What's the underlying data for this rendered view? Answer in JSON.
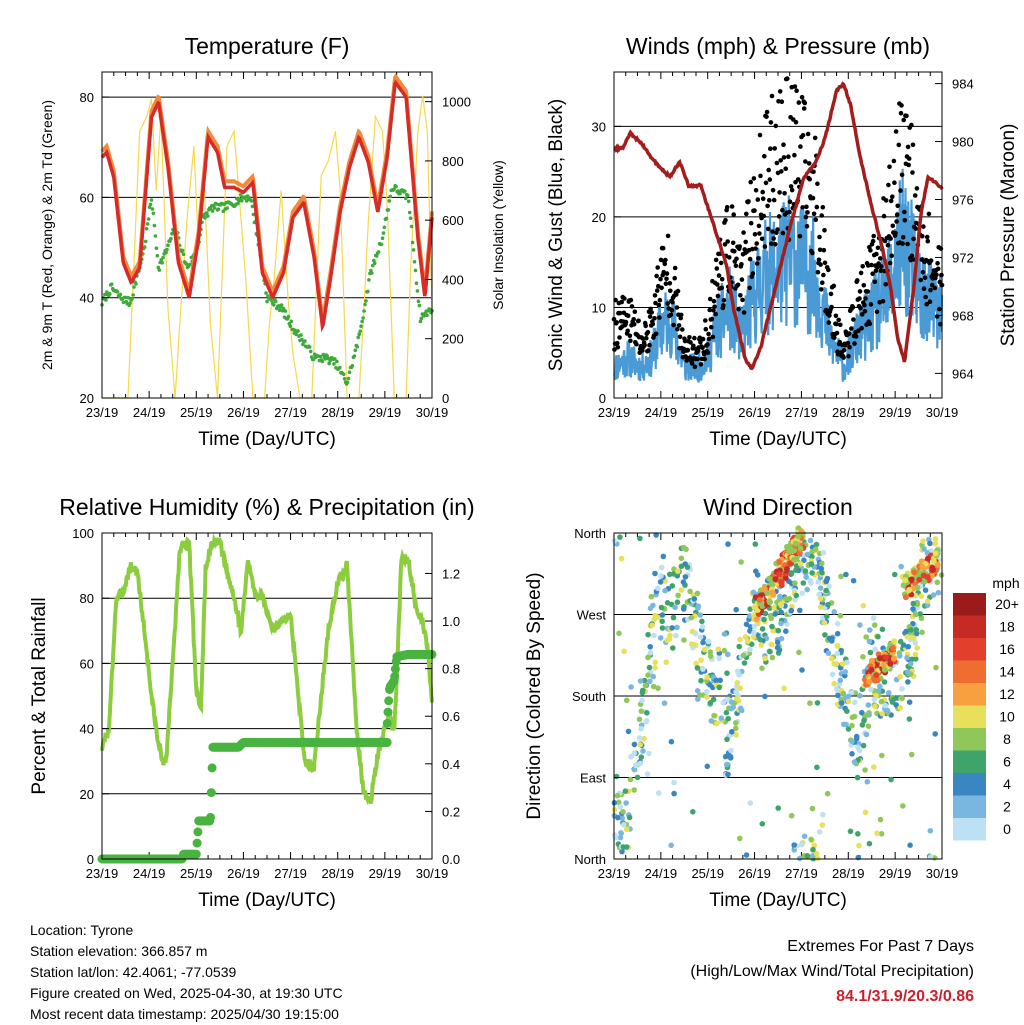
{
  "x_ticks": [
    "23/19",
    "24/19",
    "25/19",
    "26/19",
    "27/19",
    "28/19",
    "29/19",
    "30/19"
  ],
  "info": {
    "location": "Location: Tyrone",
    "elevation": "Station elevation: 366.857 m",
    "latlon": "Station lat/lon: 42.4061; -77.0539",
    "created": "Figure created on Wed, 2025-04-30, at 19:30 UTC",
    "recent": "Most recent data timestamp: 2025/04/30 19:15:00"
  },
  "extremes": {
    "title": "Extremes For Past 7 Days",
    "subtitle": "(High/Low/Max Wind/Total Precipitation)",
    "values": "84.1/31.9/20.3/0.86"
  },
  "chart_data": [
    {
      "type": "line",
      "title": "Temperature (F)",
      "xlabel": "Time (Day/UTC)",
      "ylabel": "2m & 9m T (Red, Orange) & 2m Td (Green)",
      "ylabel_right": "Solar Insolation (Yellow)",
      "ylim": [
        20,
        85
      ],
      "yticks": [
        20,
        40,
        60,
        80
      ],
      "ylim_right": [
        0,
        1100
      ],
      "yticks_right": [
        0,
        200,
        400,
        600,
        800,
        1000
      ],
      "colors": {
        "t2m": "#d62b27",
        "t9m": "#f08a3c",
        "td": "#3daa3a",
        "solar": "#f5d94b"
      },
      "series": [
        {
          "key": "t2m",
          "x": [
            0,
            0.1,
            0.25,
            0.45,
            0.62,
            0.8,
            1.05,
            1.2,
            1.4,
            1.62,
            1.85,
            2.05,
            2.25,
            2.45,
            2.6,
            2.8,
            3.0,
            3.2,
            3.4,
            3.62,
            3.85,
            4.05,
            4.28,
            4.5,
            4.68,
            4.85,
            5.05,
            5.25,
            5.45,
            5.65,
            5.85,
            6.05,
            6.22,
            6.45,
            6.7,
            6.85,
            7.0
          ],
          "y": [
            68,
            69,
            64,
            47,
            43,
            46,
            76,
            79,
            66,
            47,
            40,
            52,
            72,
            69,
            62,
            62,
            61,
            63,
            45,
            40,
            45,
            56,
            59,
            48,
            34,
            44,
            57,
            66,
            72,
            67,
            57,
            68,
            83,
            80,
            52,
            40,
            56
          ]
        },
        {
          "key": "td",
          "x": [
            0,
            0.2,
            0.4,
            0.6,
            0.9,
            1.05,
            1.2,
            1.35,
            1.55,
            1.8,
            2.0,
            2.15,
            2.35,
            2.6,
            2.8,
            3.0,
            3.15,
            3.3,
            3.5,
            3.8,
            4.05,
            4.3,
            4.5,
            4.75,
            4.95,
            5.2,
            5.45,
            5.7,
            5.95,
            6.15,
            6.35,
            6.5,
            6.75,
            6.9,
            7.0
          ],
          "y": [
            39,
            42,
            40,
            39,
            50,
            60,
            46,
            49,
            54,
            46,
            49,
            56,
            58,
            58,
            59,
            60,
            60,
            52,
            40,
            38,
            34,
            31,
            28,
            28,
            27,
            23,
            32,
            45,
            52,
            62,
            61,
            60,
            36,
            37,
            38
          ]
        },
        {
          "key": "solar",
          "x": [
            0,
            0.55,
            0.65,
            0.8,
            0.95,
            1.05,
            1.15,
            1.25,
            1.4,
            1.55,
            1.65,
            1.8,
            1.95,
            2.05,
            2.15,
            2.3,
            2.45,
            2.55,
            2.65,
            2.8,
            2.95,
            3.05,
            3.2,
            3.45,
            3.55,
            3.65,
            3.8,
            3.95,
            4.05,
            4.2,
            4.45,
            4.55,
            4.65,
            4.8,
            4.95,
            5.05,
            5.2,
            5.45,
            5.55,
            5.65,
            5.8,
            5.95,
            6.05,
            6.2,
            6.45,
            6.55,
            6.7,
            6.8,
            6.9,
            7.0
          ],
          "y": [
            0,
            0,
            350,
            900,
            950,
            1010,
            700,
            950,
            300,
            0,
            250,
            600,
            850,
            500,
            780,
            250,
            0,
            420,
            850,
            900,
            600,
            400,
            0,
            0,
            250,
            400,
            700,
            330,
            150,
            0,
            0,
            380,
            750,
            800,
            900,
            700,
            0,
            0,
            280,
            600,
            950,
            900,
            650,
            0,
            0,
            450,
            900,
            1020,
            900,
            300
          ]
        }
      ]
    },
    {
      "type": "scatter",
      "title": "Winds (mph) & Pressure (mb)",
      "xlabel": "Time (Day/UTC)",
      "ylabel": "Sonic Wind & Gust (Blue, Black)",
      "ylabel_right": "Station Pressure (Maroon)",
      "ylim": [
        0,
        36
      ],
      "yticks": [
        0,
        10,
        20,
        30
      ],
      "ylim_right": [
        962.3,
        984.8
      ],
      "yticks_right": [
        964,
        968,
        972,
        976,
        980,
        984
      ],
      "colors": {
        "wind": "#4a9ad6",
        "gust": "#000000",
        "pressure": "#a31d1d"
      },
      "series": [
        {
          "key": "wind_mean",
          "x": [
            0,
            0.3,
            0.6,
            0.8,
            1.0,
            1.2,
            1.5,
            1.8,
            2.0,
            2.2,
            2.5,
            2.7,
            2.9,
            3.2,
            3.5,
            3.8,
            4.0,
            4.3,
            4.6,
            4.9,
            5.2,
            5.5,
            5.8,
            6.0,
            6.2,
            6.5,
            6.8,
            7.0
          ],
          "y": [
            3,
            4,
            3,
            4,
            7,
            8,
            3,
            3,
            4,
            7,
            9,
            6,
            9,
            12,
            13,
            14,
            13,
            12,
            6,
            3,
            6,
            8,
            10,
            13,
            16,
            11,
            9,
            8
          ]
        },
        {
          "key": "gust_mean",
          "x": [
            0,
            0.3,
            0.6,
            0.8,
            1.0,
            1.2,
            1.5,
            1.8,
            2.0,
            2.2,
            2.5,
            2.7,
            2.9,
            3.2,
            3.5,
            3.8,
            4.0,
            4.3,
            4.6,
            4.9,
            5.2,
            5.5,
            5.8,
            6.0,
            6.2,
            6.5,
            6.8,
            7.0
          ],
          "y": [
            8,
            9,
            6,
            8,
            13,
            14,
            5,
            5,
            7,
            13,
            17,
            12,
            18,
            23,
            26,
            27,
            25,
            22,
            11,
            5,
            10,
            13,
            17,
            22,
            27,
            18,
            14,
            12
          ]
        },
        {
          "key": "pressure",
          "x": [
            0,
            0.2,
            0.35,
            0.6,
            0.8,
            1.0,
            1.2,
            1.4,
            1.6,
            1.85,
            2.1,
            2.4,
            2.55,
            2.8,
            2.95,
            3.15,
            3.45,
            3.75,
            4.05,
            4.3,
            4.5,
            4.75,
            4.9,
            5.05,
            5.25,
            5.5,
            5.7,
            5.9,
            6.05,
            6.2,
            6.4,
            6.55,
            6.7,
            6.85,
            7.0
          ],
          "y": [
            979.5,
            979.6,
            980.6,
            979.8,
            978.9,
            978.1,
            977.6,
            978.6,
            976.9,
            977.0,
            974.5,
            971.5,
            968.5,
            965.0,
            964.3,
            966.0,
            970.0,
            974.0,
            977.5,
            978.5,
            980.2,
            983.5,
            984.0,
            982.5,
            979.0,
            975.5,
            973.0,
            970.0,
            966.5,
            964.8,
            970.0,
            975.0,
            977.5,
            977.2,
            976.7
          ]
        }
      ]
    },
    {
      "type": "line",
      "title": "Relative Humidity (%) & Precipitation (in)",
      "xlabel": "Time (Day/UTC)",
      "ylabel": "Percent & Total Rainfall",
      "ylim": [
        0,
        100
      ],
      "yticks": [
        0,
        20,
        40,
        60,
        80,
        100
      ],
      "ylim_right": [
        0,
        1.37
      ],
      "yticks_right": [
        0.0,
        0.2,
        0.4,
        0.6,
        0.8,
        1.0,
        1.2
      ],
      "colors": {
        "rh": "#8ccd3f",
        "precip": "#49b340"
      },
      "series": [
        {
          "key": "rh",
          "x": [
            0,
            0.15,
            0.3,
            0.45,
            0.6,
            0.75,
            0.9,
            1.05,
            1.2,
            1.35,
            1.5,
            1.65,
            1.75,
            1.85,
            2.0,
            2.1,
            2.2,
            2.35,
            2.5,
            2.65,
            2.8,
            2.95,
            3.1,
            3.25,
            3.4,
            3.6,
            3.8,
            4.0,
            4.1,
            4.3,
            4.5,
            4.65,
            4.8,
            5.0,
            5.2,
            5.4,
            5.55,
            5.7,
            5.85,
            6.0,
            6.1,
            6.2,
            6.35,
            6.5,
            6.65,
            6.8,
            6.9,
            7.0
          ],
          "y": [
            34,
            40,
            80,
            82,
            90,
            88,
            70,
            50,
            35,
            28,
            60,
            95,
            97,
            96,
            52,
            46,
            90,
            97,
            97,
            88,
            80,
            70,
            92,
            80,
            82,
            70,
            73,
            75,
            60,
            30,
            28,
            50,
            70,
            85,
            90,
            40,
            20,
            18,
            32,
            40,
            45,
            38,
            92,
            92,
            78,
            72,
            65,
            48
          ]
        },
        {
          "key": "precip",
          "x": [
            0,
            1.7,
            1.73,
            2.0,
            2.05,
            2.3,
            2.35,
            2.9,
            3.0,
            7.0
          ],
          "y": [
            0,
            0,
            0.02,
            0.02,
            0.16,
            0.16,
            0.47,
            0.47,
            0.49,
            0.49
          ]
        },
        {
          "key": "precip_end",
          "x": [
            6.0,
            6.05,
            6.1,
            6.2,
            6.25,
            6.5,
            7.0
          ],
          "y": [
            0.49,
            0.57,
            0.72,
            0.75,
            0.85,
            0.86,
            0.86
          ]
        }
      ]
    },
    {
      "type": "scatter",
      "title": "Wind Direction",
      "xlabel": "Time (Day/UTC)",
      "ylabel": "Direction (Colored By Speed)",
      "yticks_labels": [
        "North",
        "East",
        "South",
        "West",
        "North"
      ],
      "ylim": [
        0,
        360
      ],
      "legend": {
        "title": "mph",
        "labels": [
          "20+",
          "18",
          "16",
          "14",
          "12",
          "10",
          "8",
          "6",
          "4",
          "2",
          "0"
        ],
        "colors": [
          "#9b1a1a",
          "#c52a25",
          "#e2402c",
          "#f06d32",
          "#f8a040",
          "#e8df5a",
          "#8fc759",
          "#3ea46a",
          "#3a86c0",
          "#7ab7e0",
          "#bde0f4"
        ]
      },
      "series": [
        {
          "name": "clusters",
          "x": [
            0.1,
            0.3,
            0.9,
            1.0,
            1.2,
            1.5,
            2.1,
            2.25,
            2.4,
            2.7,
            2.9,
            3.0,
            3.2,
            3.5,
            3.7,
            3.85,
            4.05,
            4.35,
            4.55,
            4.75,
            4.95,
            5.2,
            5.5,
            5.8,
            6.1,
            6.3,
            6.6,
            6.9
          ],
          "y": [
            30,
            55,
            260,
            290,
            270,
            310,
            180,
            200,
            130,
            200,
            250,
            280,
            260,
            270,
            300,
            330,
            350,
            330,
            270,
            220,
            180,
            130,
            210,
            190,
            200,
            210,
            320,
            320
          ]
        }
      ]
    }
  ]
}
